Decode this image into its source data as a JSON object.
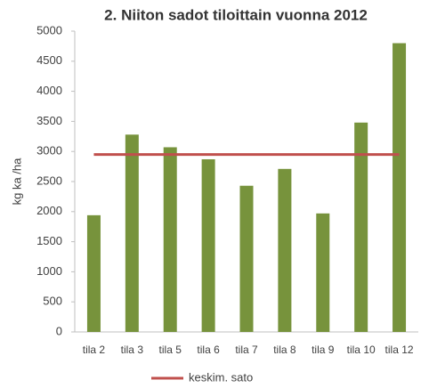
{
  "chart_data": {
    "type": "bar",
    "title": "2. Niiton sadot tiloittain vuonna 2012",
    "y_label": "kg ka /ha",
    "categories": [
      "tila 2",
      "tila 3",
      "tila 5",
      "tila 6",
      "tila 7",
      "tila 8",
      "tila 9",
      "tila 10",
      "tila 12"
    ],
    "series": [
      {
        "type": "bar",
        "color": "#77933c",
        "values": [
          1940,
          3280,
          3070,
          2870,
          2430,
          2710,
          1970,
          3480,
          4800
        ]
      },
      {
        "type": "line",
        "name": "keskim. sato",
        "color": "#c0504d",
        "values": [
          2950,
          2950,
          2950,
          2950,
          2950,
          2950,
          2950,
          2950,
          2950
        ]
      }
    ],
    "ylim": [
      0,
      5000
    ],
    "yticks": [
      0,
      500,
      1000,
      1500,
      2000,
      2500,
      3000,
      3500,
      4000,
      4500,
      5000
    ],
    "legend": "bottom"
  }
}
